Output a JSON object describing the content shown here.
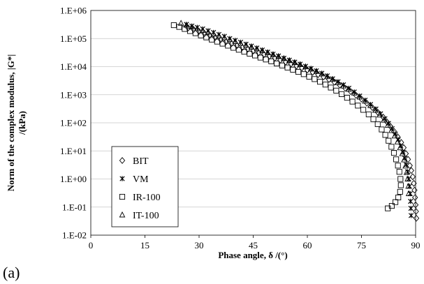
{
  "panel_label": "(a)",
  "chart_data": {
    "type": "scatter",
    "title": "",
    "xlabel": "Phase angle, δ /(°)",
    "ylabel": "Norm of the complex modulus, |G*| /(kPa)",
    "ylabel_lines": [
      "Norm of the complex modulus, |G*|",
      "/(kPa)"
    ],
    "xlim": [
      0,
      90
    ],
    "ylim": [
      0.01,
      1000000
    ],
    "yscale": "log",
    "x_ticks": [
      0,
      15,
      30,
      45,
      60,
      75,
      90
    ],
    "x_tick_labels": [
      "0",
      "15",
      "30",
      "45",
      "60",
      "75",
      "90"
    ],
    "y_ticks": [
      0.01,
      0.1,
      1,
      10,
      100,
      1000,
      10000,
      100000,
      1000000
    ],
    "y_tick_labels": [
      "1.E-02",
      "1.E-01",
      "1.E+00",
      "1.E+01",
      "1.E+02",
      "1.E+03",
      "1.E+04",
      "1.E+05",
      "1.E+06"
    ],
    "grid": "horizontal major",
    "legend_position": "lower-left",
    "series": [
      {
        "name": "BIT",
        "marker": "diamond",
        "points": [
          [
            27.0,
            240000
          ],
          [
            28.5,
            210000
          ],
          [
            30.0,
            180000
          ],
          [
            31.5,
            150000
          ],
          [
            33.0,
            130000
          ],
          [
            34.5,
            110000
          ],
          [
            36.0,
            92000
          ],
          [
            37.5,
            78000
          ],
          [
            39.0,
            66000
          ],
          [
            40.5,
            56000
          ],
          [
            42.0,
            48000
          ],
          [
            43.5,
            42000
          ],
          [
            45.0,
            36000
          ],
          [
            46.5,
            31000
          ],
          [
            48.0,
            27000
          ],
          [
            49.5,
            23500
          ],
          [
            51.0,
            20000
          ],
          [
            52.5,
            17000
          ],
          [
            54.0,
            14500
          ],
          [
            55.5,
            12500
          ],
          [
            57.0,
            10500
          ],
          [
            58.5,
            9000
          ],
          [
            60.0,
            7600
          ],
          [
            61.5,
            6300
          ],
          [
            63.0,
            5200
          ],
          [
            64.5,
            4300
          ],
          [
            66.0,
            3500
          ],
          [
            67.5,
            2800
          ],
          [
            69.0,
            2200
          ],
          [
            70.5,
            1700
          ],
          [
            72.0,
            1300
          ],
          [
            73.5,
            950
          ],
          [
            75.0,
            700
          ],
          [
            76.5,
            500
          ],
          [
            78.0,
            350
          ],
          [
            79.5,
            240
          ],
          [
            81.0,
            160
          ],
          [
            82.0,
            110
          ],
          [
            83.0,
            75
          ],
          [
            84.0,
            50
          ],
          [
            85.0,
            32
          ],
          [
            86.0,
            20
          ],
          [
            86.7,
            13
          ],
          [
            87.3,
            8
          ],
          [
            87.9,
            5
          ],
          [
            88.4,
            3
          ],
          [
            88.8,
            2
          ],
          [
            89.2,
            1.2
          ],
          [
            89.5,
            0.7
          ],
          [
            89.7,
            0.4
          ],
          [
            89.85,
            0.22
          ],
          [
            90.0,
            0.12
          ],
          [
            90.1,
            0.07
          ],
          [
            90.2,
            0.04
          ]
        ]
      },
      {
        "name": "VM",
        "marker": "asterisk",
        "points": [
          [
            26.5,
            320000
          ],
          [
            28.0,
            280000
          ],
          [
            29.5,
            250000
          ],
          [
            31.0,
            220000
          ],
          [
            32.5,
            190000
          ],
          [
            34.0,
            165000
          ],
          [
            35.5,
            140000
          ],
          [
            37.0,
            120000
          ],
          [
            38.5,
            100000
          ],
          [
            40.0,
            86000
          ],
          [
            41.5,
            74000
          ],
          [
            43.0,
            63000
          ],
          [
            44.5,
            54000
          ],
          [
            46.0,
            46000
          ],
          [
            47.5,
            39000
          ],
          [
            49.0,
            33000
          ],
          [
            50.5,
            28000
          ],
          [
            52.0,
            24000
          ],
          [
            53.5,
            20000
          ],
          [
            55.0,
            17000
          ],
          [
            56.5,
            14500
          ],
          [
            58.0,
            12300
          ],
          [
            59.5,
            10300
          ],
          [
            61.0,
            8600
          ],
          [
            62.5,
            7100
          ],
          [
            64.0,
            5800
          ],
          [
            65.5,
            4700
          ],
          [
            67.0,
            3700
          ],
          [
            68.5,
            2900
          ],
          [
            70.0,
            2250
          ],
          [
            71.5,
            1700
          ],
          [
            73.0,
            1250
          ],
          [
            74.5,
            900
          ],
          [
            76.0,
            640
          ],
          [
            77.5,
            450
          ],
          [
            79.0,
            310
          ],
          [
            80.3,
            210
          ],
          [
            81.5,
            140
          ],
          [
            82.5,
            95
          ],
          [
            83.5,
            62
          ],
          [
            84.4,
            40
          ],
          [
            85.2,
            25
          ],
          [
            85.9,
            15
          ],
          [
            86.5,
            9
          ],
          [
            87.0,
            5.5
          ],
          [
            87.4,
            3.2
          ],
          [
            87.8,
            1.8
          ],
          [
            88.1,
            1.0
          ],
          [
            88.3,
            0.55
          ],
          [
            88.5,
            0.3
          ],
          [
            88.6,
            0.16
          ],
          [
            88.7,
            0.09
          ],
          [
            88.75,
            0.05
          ]
        ]
      },
      {
        "name": "IR-100",
        "marker": "square",
        "points": [
          [
            23.0,
            300000
          ],
          [
            24.5,
            260000
          ],
          [
            26.0,
            220000
          ],
          [
            27.5,
            185000
          ],
          [
            29.0,
            155000
          ],
          [
            30.5,
            130000
          ],
          [
            32.0,
            110000
          ],
          [
            33.5,
            92000
          ],
          [
            35.0,
            78000
          ],
          [
            36.5,
            66000
          ],
          [
            38.0,
            56000
          ],
          [
            39.5,
            47000
          ],
          [
            41.0,
            40000
          ],
          [
            42.5,
            34000
          ],
          [
            44.0,
            29000
          ],
          [
            45.5,
            25000
          ],
          [
            47.0,
            21000
          ],
          [
            48.5,
            18000
          ],
          [
            50.0,
            15500
          ],
          [
            51.5,
            13000
          ],
          [
            53.0,
            11000
          ],
          [
            54.5,
            9300
          ],
          [
            56.0,
            7800
          ],
          [
            57.5,
            6500
          ],
          [
            59.0,
            5400
          ],
          [
            60.5,
            4400
          ],
          [
            62.0,
            3600
          ],
          [
            63.5,
            2900
          ],
          [
            65.0,
            2300
          ],
          [
            66.5,
            1800
          ],
          [
            68.0,
            1400
          ],
          [
            69.5,
            1050
          ],
          [
            71.0,
            780
          ],
          [
            72.5,
            570
          ],
          [
            74.0,
            410
          ],
          [
            75.5,
            290
          ],
          [
            77.0,
            200
          ],
          [
            78.3,
            135
          ],
          [
            79.5,
            90
          ],
          [
            80.6,
            58
          ],
          [
            81.6,
            37
          ],
          [
            82.5,
            23
          ],
          [
            83.3,
            14
          ],
          [
            84.0,
            8.5
          ],
          [
            84.6,
            5
          ],
          [
            85.1,
            3
          ],
          [
            85.5,
            1.8
          ],
          [
            85.8,
            1.0
          ],
          [
            85.9,
            0.6
          ],
          [
            85.7,
            0.35
          ],
          [
            85.2,
            0.22
          ],
          [
            84.4,
            0.15
          ],
          [
            83.4,
            0.11
          ],
          [
            82.3,
            0.09
          ]
        ]
      },
      {
        "name": "IT-100",
        "marker": "triangle",
        "points": [
          [
            25.0,
            350000
          ],
          [
            26.5,
            300000
          ],
          [
            28.0,
            260000
          ],
          [
            29.5,
            225000
          ],
          [
            31.0,
            195000
          ],
          [
            32.5,
            170000
          ],
          [
            34.0,
            145000
          ],
          [
            35.5,
            125000
          ],
          [
            37.0,
            107000
          ],
          [
            38.5,
            92000
          ],
          [
            40.0,
            79000
          ],
          [
            41.5,
            68000
          ],
          [
            43.0,
            58000
          ],
          [
            44.5,
            50000
          ],
          [
            46.0,
            43000
          ],
          [
            47.5,
            37000
          ],
          [
            49.0,
            31500
          ],
          [
            50.5,
            27000
          ],
          [
            52.0,
            23000
          ],
          [
            53.5,
            19500
          ],
          [
            55.0,
            16500
          ],
          [
            56.5,
            14000
          ],
          [
            58.0,
            11800
          ],
          [
            59.5,
            9900
          ],
          [
            61.0,
            8200
          ],
          [
            62.5,
            6800
          ],
          [
            64.0,
            5500
          ],
          [
            65.5,
            4400
          ],
          [
            67.0,
            3500
          ],
          [
            68.5,
            2700
          ],
          [
            70.0,
            2050
          ],
          [
            71.5,
            1550
          ],
          [
            73.0,
            1150
          ],
          [
            74.5,
            830
          ],
          [
            76.0,
            590
          ],
          [
            77.5,
            410
          ],
          [
            78.8,
            280
          ],
          [
            80.0,
            190
          ],
          [
            81.2,
            125
          ],
          [
            82.3,
            82
          ],
          [
            83.3,
            53
          ],
          [
            84.2,
            34
          ],
          [
            85.0,
            21
          ],
          [
            85.7,
            13
          ],
          [
            86.3,
            8
          ],
          [
            86.8,
            4.8
          ],
          [
            87.2,
            2.9
          ],
          [
            87.5,
            1.7
          ],
          [
            87.8,
            1.0
          ],
          [
            88.0,
            0.55
          ],
          [
            88.1,
            0.3
          ]
        ]
      }
    ]
  }
}
